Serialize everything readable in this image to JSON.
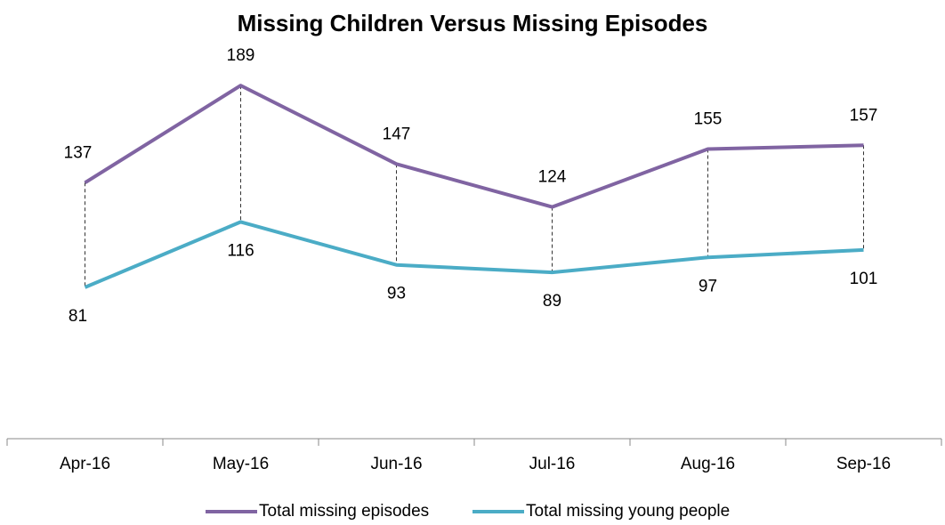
{
  "chart_data": {
    "type": "line",
    "title": "Missing Children Versus Missing Episodes",
    "categories": [
      "Apr-16",
      "May-16",
      "Jun-16",
      "Jul-16",
      "Aug-16",
      "Sep-16"
    ],
    "series": [
      {
        "name": "Total missing episodes",
        "color": "#8064a2",
        "values": [
          137,
          189,
          147,
          124,
          155,
          157
        ]
      },
      {
        "name": "Total missing young people",
        "color": "#4bacc6",
        "values": [
          81,
          116,
          93,
          89,
          97,
          101
        ]
      }
    ],
    "ylim": [
      0,
      200
    ],
    "legend": "bottom"
  }
}
